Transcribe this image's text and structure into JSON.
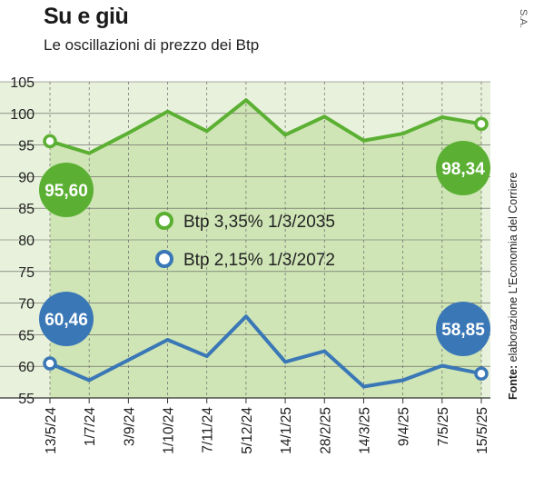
{
  "header": {
    "title": "Su e giù",
    "subtitle": "Le oscillazioni di prezzo dei Btp",
    "credit": "S.A.",
    "source_label": "Fonte:",
    "source_text": "elaborazione L'Economia del Corriere"
  },
  "chart_data": {
    "type": "line",
    "title": "Su e giù",
    "subtitle": "Le oscillazioni di prezzo dei Btp",
    "xlabel": "",
    "ylabel": "",
    "ylim": [
      55,
      105
    ],
    "yticks": [
      105,
      100,
      95,
      90,
      85,
      80,
      75,
      70,
      65,
      60,
      55
    ],
    "grid": true,
    "categories": [
      "13/5/24",
      "1/7/24",
      "3/9/24",
      "1/10/24",
      "7/11/24",
      "5/12/24",
      "14/1/25",
      "28/2/25",
      "14/3/25",
      "9/4/25",
      "7/5/25",
      "15/5/25"
    ],
    "series": [
      {
        "name": "Btp 3,35% 1/3/2035",
        "color": "#5bb033",
        "values": [
          95.6,
          93.7,
          96.9,
          100.3,
          97.2,
          102.1,
          96.6,
          99.5,
          95.7,
          96.8,
          99.4,
          98.34
        ],
        "start_label": "95,60",
        "end_label": "98,34"
      },
      {
        "name": "Btp 2,15% 1/3/2072",
        "color": "#3a77b6",
        "values": [
          60.46,
          57.8,
          61.0,
          64.2,
          61.6,
          67.9,
          60.7,
          62.4,
          56.8,
          57.8,
          60.1,
          58.85
        ],
        "start_label": "60,46",
        "end_label": "58,85"
      }
    ],
    "legend": "center"
  }
}
